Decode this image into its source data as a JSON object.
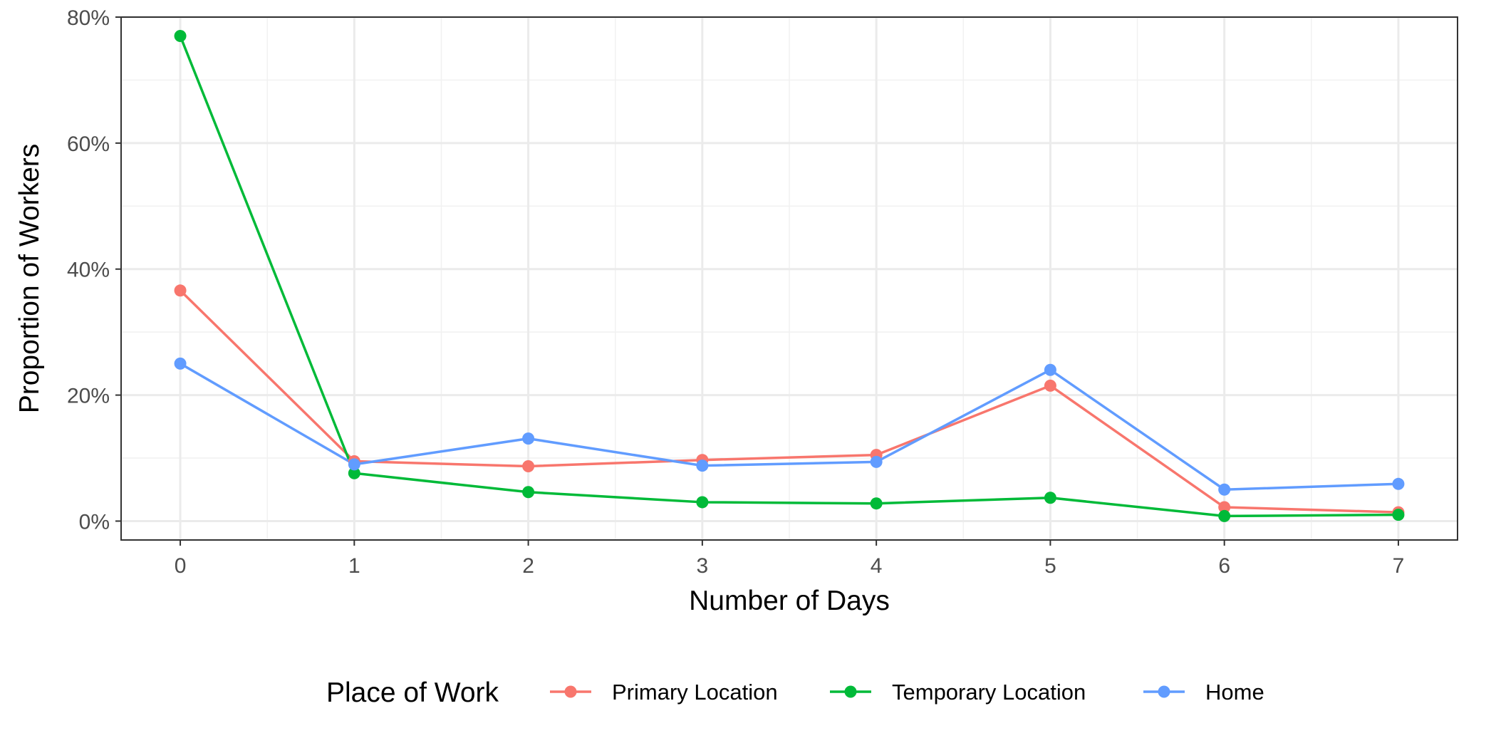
{
  "chart_data": {
    "type": "line",
    "xlabel": "Number of Days",
    "ylabel": "Proportion of Workers",
    "x": [
      0,
      1,
      2,
      3,
      4,
      5,
      6,
      7
    ],
    "xlim": [
      -0.34,
      7.34
    ],
    "ylim": [
      -0.03,
      0.8
    ],
    "y_ticks": [
      0,
      0.2,
      0.4,
      0.6,
      0.8
    ],
    "y_tick_labels": [
      "0%",
      "20%",
      "40%",
      "60%",
      "80%"
    ],
    "x_tick_labels": [
      "0",
      "1",
      "2",
      "3",
      "4",
      "5",
      "6",
      "7"
    ],
    "grid": true,
    "legend": {
      "title": "Place of Work",
      "position": "bottom"
    },
    "series": [
      {
        "name": "Primary Location",
        "color": "#F8766D",
        "values": [
          0.366,
          0.095,
          0.087,
          0.097,
          0.105,
          0.215,
          0.022,
          0.014
        ]
      },
      {
        "name": "Temporary Location",
        "color": "#00BA38",
        "values": [
          0.77,
          0.076,
          0.046,
          0.03,
          0.028,
          0.037,
          0.008,
          0.01
        ]
      },
      {
        "name": "Home",
        "color": "#619CFF",
        "values": [
          0.25,
          0.09,
          0.131,
          0.088,
          0.094,
          0.24,
          0.05,
          0.059
        ]
      }
    ]
  }
}
